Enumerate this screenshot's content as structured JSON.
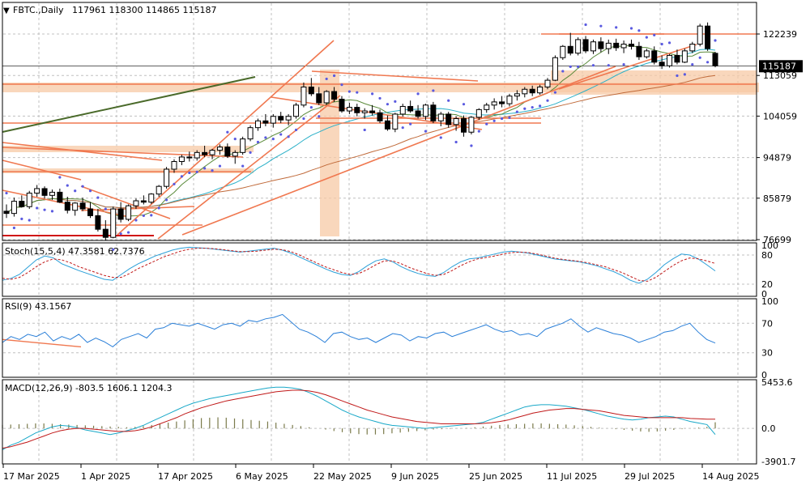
{
  "header": {
    "symbol_text": "FBTC.,Daily",
    "ohlc_text": "117961 118300 114865 115187"
  },
  "colors": {
    "background": "#ffffff",
    "grid": "#c0c0c0",
    "bull_candle": "#ffffff",
    "bear_candle": "#000000",
    "trendline": "#f07850",
    "zone_fill": "#f7c9a6",
    "ma_fast": "#2ab0c8",
    "ma_slow": "#c06a3a",
    "ma_short": "#5a8a3a",
    "parabolic_sar": "#5a5ae0",
    "stoch_main": "#2a9fd8",
    "stoch_signal": "#c01818",
    "rsi_line": "#2a7fd8",
    "macd_line": "#18a8c8",
    "macd_signal": "#c01818",
    "macd_hist": "#7a7a4a",
    "dark_trendline": "#4a6a2a",
    "last_price_bg": "#000000",
    "last_price_fg": "#ffffff"
  },
  "chart_data": [
    {
      "type": "candlestick",
      "title": "FBTC.,Daily",
      "ohlc_last": {
        "open": 117961,
        "high": 118300,
        "low": 114865,
        "close": 115187
      },
      "y_ticks": [
        122239,
        113059,
        104059,
        94879,
        85879,
        76699
      ],
      "ylim": [
        72000,
        127000
      ],
      "last_price_label": "115187",
      "x_dates": [
        "17 Mar 2025",
        "1 Apr 2025",
        "17 Apr 2025",
        "6 May 2025",
        "22 May 2025",
        "9 Jun 2025",
        "25 Jun 2025",
        "11 Jul 2025",
        "29 Jul 2025",
        "14 Aug 2025"
      ],
      "candles": [
        [
          83000,
          84500,
          81500,
          82500
        ],
        [
          82500,
          86000,
          81800,
          85200
        ],
        [
          85200,
          86500,
          83800,
          84000
        ],
        [
          84000,
          87500,
          83500,
          87000
        ],
        [
          87000,
          88800,
          86200,
          88000
        ],
        [
          88000,
          88500,
          85800,
          86500
        ],
        [
          86500,
          87800,
          85500,
          87200
        ],
        [
          87200,
          88000,
          84800,
          85000
        ],
        [
          85000,
          86200,
          82500,
          83200
        ],
        [
          83200,
          85000,
          82000,
          84800
        ],
        [
          84800,
          86000,
          83000,
          83500
        ],
        [
          83500,
          85000,
          81500,
          82000
        ],
        [
          82000,
          83500,
          78500,
          79000
        ],
        [
          79000,
          81000,
          76500,
          77200
        ],
        [
          77200,
          84000,
          77000,
          83500
        ],
        [
          83500,
          85000,
          80500,
          81200
        ],
        [
          81200,
          84500,
          80800,
          84200
        ],
        [
          84200,
          85800,
          83500,
          85300
        ],
        [
          85300,
          86500,
          84500,
          85000
        ],
        [
          85000,
          87000,
          84600,
          86800
        ],
        [
          86800,
          88800,
          86200,
          88500
        ],
        [
          88500,
          92800,
          88000,
          92300
        ],
        [
          92300,
          94500,
          91500,
          94000
        ],
        [
          94000,
          95500,
          93200,
          95000
        ],
        [
          95000,
          96200,
          94000,
          94800
        ],
        [
          94800,
          96500,
          94200,
          96000
        ],
        [
          96000,
          97500,
          95000,
          95500
        ],
        [
          95500,
          96800,
          94500,
          96500
        ],
        [
          96500,
          97800,
          95500,
          97200
        ],
        [
          97200,
          98000,
          94800,
          95200
        ],
        [
          95200,
          96500,
          93500,
          96000
        ],
        [
          96000,
          99500,
          95500,
          99000
        ],
        [
          99000,
          102000,
          98500,
          101500
        ],
        [
          101500,
          103500,
          100800,
          103000
        ],
        [
          103000,
          104500,
          101800,
          102500
        ],
        [
          102500,
          104500,
          101500,
          104000
        ],
        [
          104000,
          105000,
          102500,
          103200
        ],
        [
          103200,
          104500,
          102000,
          104000
        ],
        [
          104000,
          107000,
          103500,
          106500
        ],
        [
          106500,
          111500,
          106000,
          110500
        ],
        [
          110500,
          112500,
          108500,
          109000
        ],
        [
          109000,
          110500,
          106500,
          107000
        ],
        [
          107000,
          109800,
          106500,
          109500
        ],
        [
          109500,
          110500,
          107200,
          107800
        ],
        [
          107800,
          108500,
          104800,
          105200
        ],
        [
          105200,
          107000,
          104500,
          106000
        ],
        [
          106000,
          106800,
          104000,
          104800
        ],
        [
          104800,
          105800,
          103500,
          105200
        ],
        [
          105200,
          106500,
          104200,
          104800
        ],
        [
          104800,
          105500,
          102500,
          103000
        ],
        [
          103000,
          104200,
          100800,
          101200
        ],
        [
          101200,
          104800,
          100500,
          104500
        ],
        [
          104500,
          106800,
          104000,
          106200
        ],
        [
          106200,
          107500,
          104800,
          105200
        ],
        [
          105200,
          106500,
          103500,
          104000
        ],
        [
          104000,
          106800,
          103200,
          106500
        ],
        [
          106500,
          107200,
          102500,
          103000
        ],
        [
          103000,
          105000,
          101800,
          104500
        ],
        [
          104500,
          105000,
          101500,
          102200
        ],
        [
          102200,
          104000,
          100800,
          103500
        ],
        [
          103500,
          104200,
          99500,
          100500
        ],
        [
          100500,
          104000,
          100000,
          103800
        ],
        [
          103800,
          105800,
          103200,
          105500
        ],
        [
          105500,
          107000,
          104800,
          106500
        ],
        [
          106500,
          108000,
          105500,
          107200
        ],
        [
          107200,
          108500,
          106000,
          106800
        ],
        [
          106800,
          109000,
          106200,
          108500
        ],
        [
          108500,
          109800,
          107500,
          109000
        ],
        [
          109000,
          110500,
          108200,
          110000
        ],
        [
          110000,
          110800,
          108500,
          109200
        ],
        [
          109200,
          111000,
          108800,
          110500
        ],
        [
          110500,
          112500,
          110000,
          112000
        ],
        [
          112000,
          117500,
          111800,
          117000
        ],
        [
          117000,
          119800,
          116500,
          119500
        ],
        [
          119500,
          122500,
          117500,
          118000
        ],
        [
          118000,
          121500,
          117500,
          121000
        ],
        [
          121000,
          121800,
          118000,
          118500
        ],
        [
          118500,
          121000,
          117800,
          120500
        ],
        [
          120500,
          121500,
          118200,
          119000
        ],
        [
          119000,
          121000,
          117800,
          120200
        ],
        [
          120200,
          121200,
          118500,
          119200
        ],
        [
          119200,
          120800,
          118000,
          120000
        ],
        [
          120000,
          121000,
          118800,
          119500
        ],
        [
          119500,
          120500,
          116500,
          117200
        ],
        [
          117200,
          119000,
          116800,
          118500
        ],
        [
          118500,
          119500,
          115500,
          116000
        ],
        [
          116000,
          117500,
          114500,
          115200
        ],
        [
          115200,
          117800,
          114800,
          117500
        ],
        [
          117500,
          118800,
          115500,
          116000
        ],
        [
          116000,
          119000,
          115800,
          118500
        ],
        [
          118500,
          120500,
          118000,
          120000
        ],
        [
          120000,
          124500,
          119500,
          124000
        ],
        [
          124000,
          124800,
          118500,
          119000
        ],
        [
          117961,
          118300,
          114865,
          115187
        ]
      ]
    },
    {
      "type": "line",
      "title": "Stoch(15,5,4) 47.3581 62.7376",
      "y_ticks": [
        100,
        80,
        20,
        0
      ],
      "ylim": [
        0,
        100
      ],
      "series": [
        {
          "name": "Main",
          "values": [
            28,
            32,
            40,
            55,
            70,
            78,
            74,
            62,
            55,
            48,
            42,
            36,
            30,
            28,
            40,
            52,
            62,
            70,
            78,
            84,
            90,
            94,
            96,
            95,
            94,
            92,
            90,
            88,
            86,
            88,
            90,
            92,
            94,
            90,
            84,
            76,
            68,
            60,
            52,
            45,
            40,
            38,
            46,
            58,
            68,
            72,
            66,
            56,
            48,
            42,
            38,
            36,
            44,
            56,
            66,
            72,
            74,
            78,
            82,
            86,
            88,
            86,
            84,
            80,
            76,
            72,
            70,
            68,
            66,
            62,
            58,
            52,
            46,
            38,
            28,
            22,
            30,
            44,
            60,
            72,
            82,
            80,
            72,
            60,
            47.3581
          ]
        },
        {
          "name": "Signal",
          "values": [
            32,
            30,
            34,
            44,
            56,
            66,
            72,
            70,
            64,
            56,
            50,
            44,
            38,
            34,
            34,
            42,
            52,
            60,
            68,
            76,
            82,
            88,
            92,
            94,
            94,
            93,
            91,
            89,
            87,
            87,
            88,
            90,
            92,
            91,
            87,
            80,
            72,
            64,
            56,
            50,
            44,
            40,
            42,
            50,
            60,
            68,
            68,
            62,
            54,
            48,
            42,
            38,
            40,
            48,
            58,
            66,
            72,
            75,
            78,
            82,
            85,
            86,
            85,
            82,
            78,
            74,
            71,
            69,
            67,
            64,
            60,
            56,
            50,
            44,
            36,
            28,
            26,
            34,
            46,
            58,
            68,
            74,
            72,
            68,
            62.7376
          ]
        }
      ]
    },
    {
      "type": "line",
      "title": "RSI(9) 43.1567",
      "y_ticks": [
        100,
        70,
        30,
        0
      ],
      "ylim": [
        0,
        100
      ],
      "series": [
        {
          "name": "RSI",
          "values": [
            44,
            52,
            48,
            55,
            52,
            58,
            46,
            52,
            48,
            55,
            44,
            50,
            45,
            38,
            48,
            52,
            56,
            50,
            62,
            64,
            70,
            68,
            66,
            70,
            66,
            62,
            68,
            70,
            66,
            74,
            72,
            76,
            78,
            82,
            72,
            62,
            58,
            52,
            44,
            56,
            58,
            52,
            48,
            50,
            44,
            50,
            56,
            54,
            46,
            52,
            50,
            56,
            58,
            52,
            56,
            60,
            64,
            68,
            62,
            58,
            60,
            54,
            56,
            52,
            62,
            66,
            70,
            76,
            66,
            58,
            64,
            60,
            56,
            54,
            50,
            44,
            48,
            52,
            58,
            60,
            66,
            70,
            58,
            48,
            43.1567
          ]
        }
      ]
    },
    {
      "type": "bar",
      "title": "MACD(12,26,9) -803.5 1606.1 1204.3",
      "y_ticks": [
        5453.6,
        0.0,
        -3901.7
      ],
      "ylim": [
        -3901.7,
        5453.6
      ],
      "series": [
        {
          "name": "MACD",
          "values": [
            -2800,
            -2200,
            -1800,
            -1200,
            -600,
            -200,
            200,
            400,
            300,
            100,
            -200,
            -400,
            -600,
            -800,
            -600,
            -300,
            0,
            400,
            900,
            1400,
            1900,
            2400,
            2900,
            3300,
            3600,
            3900,
            4100,
            4300,
            4500,
            4700,
            4900,
            5100,
            5300,
            5400,
            5400,
            5300,
            5100,
            4700,
            4200,
            3600,
            3000,
            2400,
            1900,
            1500,
            1200,
            900,
            600,
            400,
            300,
            200,
            100,
            0,
            100,
            200,
            300,
            400,
            500,
            600,
            800,
            1200,
            1600,
            2000,
            2400,
            2800,
            3000,
            3100,
            3100,
            3000,
            2900,
            2700,
            2500,
            2200,
            1900,
            1600,
            1400,
            1200,
            1100,
            1200,
            1400,
            1500,
            1600,
            1500,
            1200,
            900,
            700,
            500,
            -803.5
          ]
        },
        {
          "name": "Signal",
          "values": [
            -2600,
            -2400,
            -2100,
            -1800,
            -1400,
            -1000,
            -600,
            -300,
            -100,
            0,
            0,
            -100,
            -200,
            -300,
            -400,
            -400,
            -300,
            -100,
            200,
            600,
            1000,
            1400,
            1900,
            2300,
            2700,
            3000,
            3300,
            3600,
            3800,
            4000,
            4200,
            4400,
            4600,
            4800,
            4900,
            5000,
            5000,
            4900,
            4700,
            4400,
            4000,
            3600,
            3200,
            2800,
            2400,
            2100,
            1800,
            1500,
            1300,
            1100,
            900,
            800,
            700,
            600,
            600,
            600,
            600,
            600,
            650,
            750,
            900,
            1100,
            1400,
            1700,
            2000,
            2200,
            2400,
            2500,
            2600,
            2600,
            2500,
            2400,
            2300,
            2100,
            1900,
            1700,
            1600,
            1500,
            1400,
            1400,
            1400,
            1400,
            1400,
            1300,
            1250,
            1204.3,
            1204.3
          ]
        },
        {
          "name": "Histogram",
          "values": [
            900,
            1000,
            1100,
            1200,
            1300,
            1300,
            1200,
            1100,
            1000,
            900,
            800,
            700,
            600,
            500,
            400,
            300,
            400,
            600,
            900,
            1200,
            1500,
            1800,
            2100,
            2400,
            2700,
            2800,
            2900,
            2800,
            2600,
            2400,
            2200,
            2000,
            1800,
            1500,
            1200,
            900,
            600,
            300,
            0,
            -300,
            -700,
            -1000,
            -1300,
            -1500,
            -1600,
            -1600,
            -1500,
            -1300,
            -1100,
            -900,
            -700,
            -500,
            -300,
            -200,
            -100,
            0,
            100,
            300,
            500,
            700,
            900,
            1000,
            1100,
            1200,
            1300,
            1300,
            1200,
            1100,
            1000,
            800,
            600,
            400,
            200,
            0,
            -200,
            -400,
            -600,
            -800,
            -900,
            -800,
            -600,
            -400,
            -200,
            0,
            200,
            400,
            1606.1
          ]
        }
      ]
    }
  ]
}
